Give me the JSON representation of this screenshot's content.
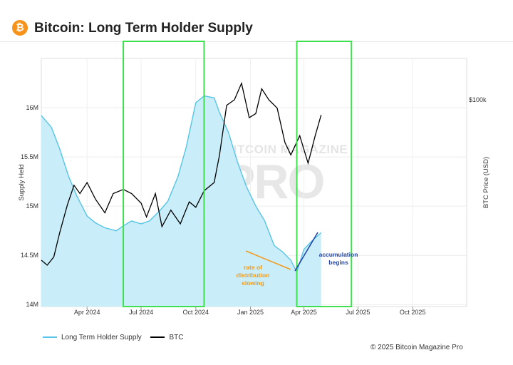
{
  "header": {
    "title": "Bitcoin: Long Term Holder Supply",
    "logo_glyph": "₿"
  },
  "watermark": {
    "top": "BITCOIN MAGAZINE",
    "big": "PRO"
  },
  "footer": {
    "text": "© 2025 Bitcoin Magazine Pro"
  },
  "colors": {
    "lth": "#56c4e6",
    "lth_fill": "#c9eef9",
    "btc": "#000000",
    "highlight": "#3ee04e",
    "orange": "#f29a1b",
    "blue": "#2346a6"
  },
  "annotations": {
    "orange_text": [
      "rate of",
      "distribution",
      "slowing"
    ],
    "blue_text": [
      "accumulation",
      "begins"
    ]
  },
  "chart_data": {
    "type": "line",
    "title": "Bitcoin: Long Term Holder Supply",
    "ylabel": "Supply Held",
    "y2label": "BTC Price (USD)",
    "x_ticks": [
      "Apr 2024",
      "Jul 2024",
      "Oct 2024",
      "Jan 2025",
      "Apr 2025",
      "Jul 2025",
      "Oct 2025"
    ],
    "y_ticks": [
      "14M",
      "14.5M",
      "15M",
      "15.5M",
      "16M"
    ],
    "y2_ticks": [
      "$100k"
    ],
    "ylim": [
      13.98,
      16.5
    ],
    "y2lim": [
      25000,
      115000
    ],
    "xlim": [
      "2024-01-15",
      "2025-12-31"
    ],
    "legend_position": "bottom-left",
    "grid": true,
    "series": [
      {
        "name": "Long Term Holder Supply",
        "axis": "left",
        "fill": true,
        "points": [
          [
            "2024-01-15",
            15.92
          ],
          [
            "2024-02-01",
            15.8
          ],
          [
            "2024-02-15",
            15.58
          ],
          [
            "2024-03-01",
            15.3
          ],
          [
            "2024-03-15",
            15.1
          ],
          [
            "2024-04-01",
            14.9
          ],
          [
            "2024-04-15",
            14.83
          ],
          [
            "2024-05-01",
            14.78
          ],
          [
            "2024-05-20",
            14.75
          ],
          [
            "2024-06-01",
            14.8
          ],
          [
            "2024-06-15",
            14.85
          ],
          [
            "2024-07-01",
            14.82
          ],
          [
            "2024-07-15",
            14.85
          ],
          [
            "2024-08-01",
            14.95
          ],
          [
            "2024-08-15",
            15.05
          ],
          [
            "2024-09-01",
            15.3
          ],
          [
            "2024-09-15",
            15.6
          ],
          [
            "2024-10-01",
            16.05
          ],
          [
            "2024-10-15",
            16.12
          ],
          [
            "2024-11-01",
            16.1
          ],
          [
            "2024-11-10",
            15.95
          ],
          [
            "2024-11-25",
            15.75
          ],
          [
            "2024-12-10",
            15.45
          ],
          [
            "2024-12-25",
            15.2
          ],
          [
            "2025-01-10",
            15.0
          ],
          [
            "2025-01-25",
            14.85
          ],
          [
            "2025-02-10",
            14.6
          ],
          [
            "2025-02-25",
            14.53
          ],
          [
            "2025-03-10",
            14.45
          ],
          [
            "2025-03-20",
            14.33
          ],
          [
            "2025-04-01",
            14.56
          ],
          [
            "2025-04-15",
            14.65
          ],
          [
            "2025-04-30",
            14.73
          ]
        ]
      },
      {
        "name": "BTC",
        "axis": "right",
        "fill": false,
        "points": [
          [
            "2024-01-15",
            41800
          ],
          [
            "2024-01-25",
            40000
          ],
          [
            "2024-02-05",
            43000
          ],
          [
            "2024-02-15",
            51800
          ],
          [
            "2024-02-28",
            62000
          ],
          [
            "2024-03-10",
            69000
          ],
          [
            "2024-03-20",
            66000
          ],
          [
            "2024-04-01",
            70000
          ],
          [
            "2024-04-15",
            64000
          ],
          [
            "2024-05-01",
            59000
          ],
          [
            "2024-05-15",
            66000
          ],
          [
            "2024-06-01",
            67500
          ],
          [
            "2024-06-15",
            66000
          ],
          [
            "2024-07-01",
            62500
          ],
          [
            "2024-07-10",
            57500
          ],
          [
            "2024-07-25",
            66000
          ],
          [
            "2024-08-05",
            54000
          ],
          [
            "2024-08-20",
            60000
          ],
          [
            "2024-09-05",
            55000
          ],
          [
            "2024-09-20",
            63000
          ],
          [
            "2024-10-01",
            61000
          ],
          [
            "2024-10-15",
            67000
          ],
          [
            "2024-11-01",
            70000
          ],
          [
            "2024-11-10",
            80000
          ],
          [
            "2024-11-22",
            98000
          ],
          [
            "2024-12-05",
            100000
          ],
          [
            "2024-12-17",
            106000
          ],
          [
            "2024-12-30",
            93500
          ],
          [
            "2025-01-10",
            95000
          ],
          [
            "2025-01-20",
            104000
          ],
          [
            "2025-02-01",
            100000
          ],
          [
            "2025-02-15",
            97000
          ],
          [
            "2025-02-28",
            84500
          ],
          [
            "2025-03-10",
            80000
          ],
          [
            "2025-03-25",
            87000
          ],
          [
            "2025-04-08",
            77000
          ],
          [
            "2025-04-20",
            87000
          ],
          [
            "2025-04-30",
            94500
          ]
        ]
      }
    ],
    "highlight_ranges": [
      [
        "2024-06-01",
        "2024-10-15"
      ],
      [
        "2025-03-20",
        "2025-06-20"
      ]
    ]
  }
}
